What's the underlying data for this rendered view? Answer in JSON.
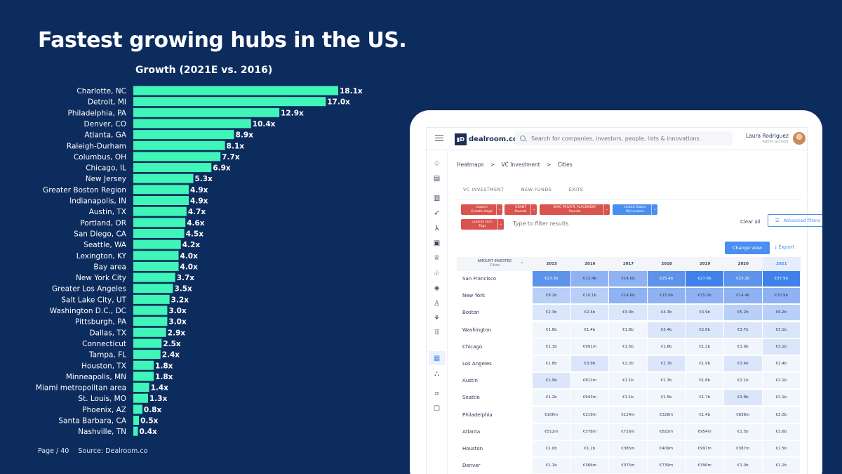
{
  "slide": {
    "title": "Fastest growing hubs in the US.",
    "page_label": "Page / 40",
    "source": "Source: Dealroom.co"
  },
  "chart_data": {
    "type": "bar",
    "orientation": "horizontal",
    "title": "Growth (2021E vs. 2016)",
    "xlabel": "",
    "ylabel": "",
    "xlim": [
      0,
      18.1
    ],
    "grid": false,
    "bar_color": "#3ff5b8",
    "label_suffix": "x",
    "categories": [
      "Charlotte, NC",
      "Detroit, MI",
      "Philadelphia, PA",
      "Denver, CO",
      "Atlanta, GA",
      "Raleigh-Durham",
      "Columbus, OH",
      "Chicago, IL",
      "New Jersey",
      "Greater Boston Region",
      "Indianapolis, IN",
      "Austin, TX",
      "Portland, OR",
      "San Diego, CA",
      "Seattle, WA",
      "Lexington, KY",
      "Bay area",
      "New York City",
      "Greater Los Angeles",
      "Salt Lake City, UT",
      "Washington D.C., DC",
      "Pittsburgh, PA",
      "Dallas, TX",
      "Connecticut",
      "Tampa, FL",
      "Houston, TX",
      "Minneapolis, MN",
      "Miami metropolitan area",
      "St. Louis, MO",
      "Phoenix, AZ",
      "Santa Barbara, CA",
      "Nashville, TN"
    ],
    "values": [
      18.1,
      17.0,
      12.9,
      10.4,
      8.9,
      8.1,
      7.7,
      6.9,
      5.3,
      4.9,
      4.9,
      4.7,
      4.6,
      4.5,
      4.2,
      4.0,
      4.0,
      3.7,
      3.5,
      3.2,
      3.0,
      3.0,
      2.9,
      2.5,
      2.4,
      1.8,
      1.8,
      1.4,
      1.3,
      0.8,
      0.5,
      0.4
    ],
    "value_labels": [
      "18.1x",
      "17.0x",
      "12.9x",
      "10.4x",
      "8.9x",
      "8.1x",
      "7.7x",
      "6.9x",
      "5.3x",
      "4.9x",
      "4.9x",
      "4.7x",
      "4.6x",
      "4.5x",
      "4.2x",
      "4.0x",
      "4.0x",
      "3.7x",
      "3.5x",
      "3.2x",
      "3.0x",
      "3.0x",
      "2.9x",
      "2.5x",
      "2.4x",
      "1.8x",
      "1.8x",
      "1.4x",
      "1.3x",
      "0.8x",
      "0.5x",
      "0.4x"
    ]
  },
  "app": {
    "logo_mark": "▮D",
    "logo_text": "dealroom.co",
    "search_placeholder": "Search for companies, investors, people, lists & innovations",
    "user_name": "Laura Rodriguez",
    "user_role": "Admin account",
    "breadcrumb": [
      "Heatmaps",
      ">",
      "VC Investment",
      ">",
      "Cities"
    ],
    "tabs": [
      "VC INVESTMENT",
      "NEW FUNDS",
      "EXITS"
    ],
    "filter_chips": [
      {
        "title": "mature",
        "sub": "Growth stage",
        "color": "red"
      },
      {
        "title": "GRANT",
        "sub": "Rounds",
        "color": "red"
      },
      {
        "title": "SPAC PRIVATE PLACEMENT",
        "sub": "Rounds",
        "color": "red"
      },
      {
        "title": "United States",
        "sub": "HQ location",
        "color": "blue"
      },
      {
        "title": "outside tech",
        "sub": "Tags",
        "color": "red"
      }
    ],
    "filter_placeholder": "Type to filter results",
    "clear_all": "Clear all",
    "advanced_filters": "Advanced filters",
    "change_view": "Change view",
    "export": "Export",
    "table": {
      "corner_title": "AMOUNT INVESTED",
      "corner_sub": "Cities",
      "years": [
        "2015",
        "2016",
        "2017",
        "2018",
        "2019",
        "2020",
        "2021"
      ],
      "rows": [
        {
          "city": "San Francisco",
          "values": [
            "€23.3b",
            "€13.4b",
            "€14.0b",
            "€25.4b",
            "€27.6b",
            "€23.2b",
            "€37.9b"
          ],
          "levels": [
            4,
            3,
            3,
            4,
            5,
            4,
            5
          ]
        },
        {
          "city": "New York",
          "values": [
            "€8.2b",
            "€10.1b",
            "€14.6b",
            "€15.9b",
            "€15.0b",
            "€14.4b",
            "€20.9b"
          ],
          "levels": [
            2,
            2,
            3,
            3,
            3,
            3,
            3
          ]
        },
        {
          "city": "Boston",
          "values": [
            "€2.3b",
            "€2.4b",
            "€3.0b",
            "€4.3b",
            "€3.9b",
            "€5.2b",
            "€6.2b"
          ],
          "levels": [
            1,
            1,
            1,
            1,
            1,
            2,
            2
          ]
        },
        {
          "city": "Washington",
          "values": [
            "€1.6b",
            "€1.4b",
            "€1.8b",
            "€3.4b",
            "€2.8b",
            "€3.7b",
            "€3.1b"
          ],
          "levels": [
            0,
            0,
            0,
            1,
            1,
            1,
            1
          ]
        },
        {
          "city": "Chicago",
          "values": [
            "€1.1b",
            "€901m",
            "€1.5b",
            "€1.8b",
            "€1.2b",
            "€1.9b",
            "€3.1b"
          ],
          "levels": [
            0,
            0,
            0,
            0,
            0,
            0,
            1
          ]
        },
        {
          "city": "Los Angeles",
          "values": [
            "€1.8b",
            "€3.9b",
            "€2.2b",
            "€2.7b",
            "€1.9b",
            "€3.4b",
            "€2.4b"
          ],
          "levels": [
            0,
            1,
            0,
            1,
            0,
            1,
            0
          ]
        },
        {
          "city": "Austin",
          "values": [
            "€1.9b",
            "€812m",
            "€1.1b",
            "€1.3b",
            "€1.8b",
            "€2.1b",
            "€2.1b"
          ],
          "levels": [
            1,
            0,
            0,
            0,
            0,
            0,
            0
          ]
        },
        {
          "city": "Seattle",
          "values": [
            "€1.2b",
            "€943m",
            "€1.1b",
            "€1.5b",
            "€1.7b",
            "€3.8b",
            "€2.1b"
          ],
          "levels": [
            0,
            0,
            0,
            0,
            0,
            1,
            0
          ]
        },
        {
          "city": "Philadelphia",
          "values": [
            "€106m",
            "€219m",
            "€114m",
            "€328m",
            "€1.4b",
            "€838m",
            "€2.0b"
          ],
          "levels": [
            0,
            0,
            0,
            0,
            0,
            0,
            0
          ]
        },
        {
          "city": "Atlanta",
          "values": [
            "€512m",
            "€378m",
            "€716m",
            "€822m",
            "€954m",
            "€1.5b",
            "€1.6b"
          ],
          "levels": [
            0,
            0,
            0,
            0,
            0,
            0,
            0
          ]
        },
        {
          "city": "Houston",
          "values": [
            "€1.0b",
            "€1.2b",
            "€385m",
            "€409m",
            "€997m",
            "€387m",
            "€1.5b"
          ],
          "levels": [
            0,
            0,
            0,
            0,
            0,
            0,
            0
          ]
        },
        {
          "city": "Denver",
          "values": [
            "€1.1b",
            "€366m",
            "€375m",
            "€739m",
            "€390m",
            "€1.0b",
            "€1.1b"
          ],
          "levels": [
            0,
            0,
            0,
            0,
            0,
            0,
            0
          ]
        }
      ]
    },
    "heat_colors": [
      "#f1f5fc",
      "#dbe6fb",
      "#b9cff7",
      "#8fb2f2",
      "#5e93ec",
      "#4080ea"
    ]
  }
}
